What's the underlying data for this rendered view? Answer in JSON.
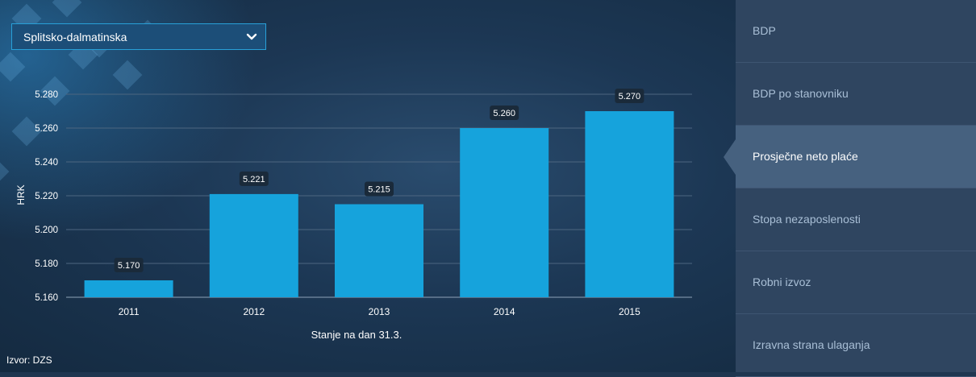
{
  "region_select": {
    "selected": "Splitsko-dalmatinska"
  },
  "source": "Izvor: DZS",
  "sidebar": {
    "items": [
      {
        "label": "BDP",
        "active": false
      },
      {
        "label": "BDP po stanovniku",
        "active": false
      },
      {
        "label": "Prosječne neto plaće",
        "active": true
      },
      {
        "label": "Stopa nezaposlenosti",
        "active": false
      },
      {
        "label": "Robni izvoz",
        "active": false
      },
      {
        "label": "Izravna strana ulaganja",
        "active": false
      }
    ]
  },
  "colors": {
    "bar": "#16a3dc",
    "label_bg": "#1a2a3a",
    "accent": "#28a0d8",
    "sidebar_bg": "#2f4560",
    "sidebar_active": "#46617f"
  },
  "chart_data": {
    "type": "bar",
    "categories": [
      "2011",
      "2012",
      "2013",
      "2014",
      "2015"
    ],
    "values": [
      5170,
      5221,
      5215,
      5260,
      5270
    ],
    "value_labels": [
      "5.170",
      "5.221",
      "5.215",
      "5.260",
      "5.270"
    ],
    "ylabel": "HRK",
    "xlabel": "Stanje na dan 31.3.",
    "ylim": [
      5160,
      5280
    ],
    "yticks": [
      5160,
      5180,
      5200,
      5220,
      5240,
      5260,
      5280
    ],
    "ytick_labels": [
      "5.160",
      "5.180",
      "5.200",
      "5.220",
      "5.240",
      "5.260",
      "5.280"
    ],
    "grid": true,
    "legend": "none"
  }
}
